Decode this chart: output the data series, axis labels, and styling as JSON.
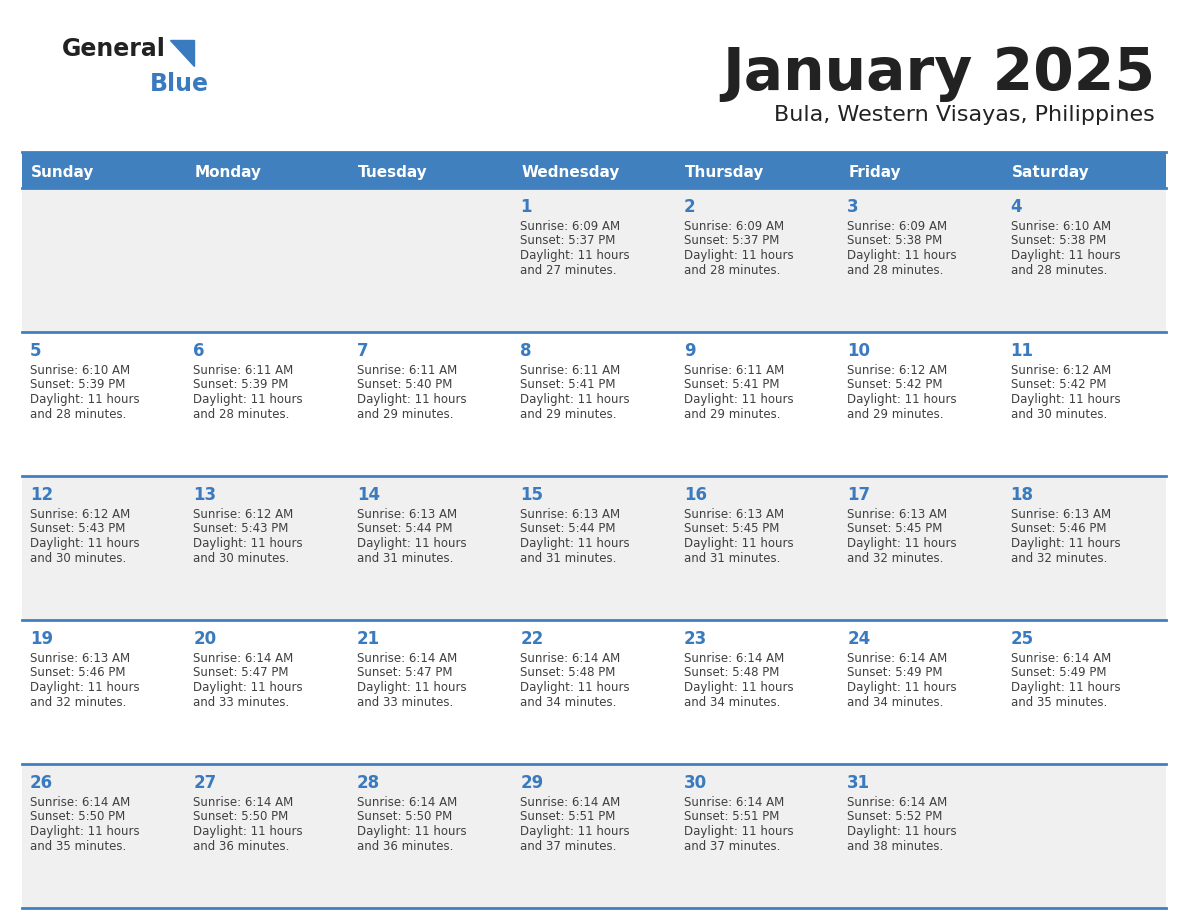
{
  "title": "January 2025",
  "subtitle": "Bula, Western Visayas, Philippines",
  "days_of_week": [
    "Sunday",
    "Monday",
    "Tuesday",
    "Wednesday",
    "Thursday",
    "Friday",
    "Saturday"
  ],
  "header_bg": "#4080bf",
  "header_text": "#ffffff",
  "row_bg_odd": "#f0f0f0",
  "row_bg_even": "#ffffff",
  "separator_color": "#4080bf",
  "day_num_color": "#3a7abf",
  "text_color": "#404040",
  "calendar_data": [
    {
      "day": 1,
      "col": 3,
      "row": 0,
      "sunrise": "6:09 AM",
      "sunset": "5:37 PM",
      "daylight": "11 hours and 27 minutes."
    },
    {
      "day": 2,
      "col": 4,
      "row": 0,
      "sunrise": "6:09 AM",
      "sunset": "5:37 PM",
      "daylight": "11 hours and 28 minutes."
    },
    {
      "day": 3,
      "col": 5,
      "row": 0,
      "sunrise": "6:09 AM",
      "sunset": "5:38 PM",
      "daylight": "11 hours and 28 minutes."
    },
    {
      "day": 4,
      "col": 6,
      "row": 0,
      "sunrise": "6:10 AM",
      "sunset": "5:38 PM",
      "daylight": "11 hours and 28 minutes."
    },
    {
      "day": 5,
      "col": 0,
      "row": 1,
      "sunrise": "6:10 AM",
      "sunset": "5:39 PM",
      "daylight": "11 hours and 28 minutes."
    },
    {
      "day": 6,
      "col": 1,
      "row": 1,
      "sunrise": "6:11 AM",
      "sunset": "5:39 PM",
      "daylight": "11 hours and 28 minutes."
    },
    {
      "day": 7,
      "col": 2,
      "row": 1,
      "sunrise": "6:11 AM",
      "sunset": "5:40 PM",
      "daylight": "11 hours and 29 minutes."
    },
    {
      "day": 8,
      "col": 3,
      "row": 1,
      "sunrise": "6:11 AM",
      "sunset": "5:41 PM",
      "daylight": "11 hours and 29 minutes."
    },
    {
      "day": 9,
      "col": 4,
      "row": 1,
      "sunrise": "6:11 AM",
      "sunset": "5:41 PM",
      "daylight": "11 hours and 29 minutes."
    },
    {
      "day": 10,
      "col": 5,
      "row": 1,
      "sunrise": "6:12 AM",
      "sunset": "5:42 PM",
      "daylight": "11 hours and 29 minutes."
    },
    {
      "day": 11,
      "col": 6,
      "row": 1,
      "sunrise": "6:12 AM",
      "sunset": "5:42 PM",
      "daylight": "11 hours and 30 minutes."
    },
    {
      "day": 12,
      "col": 0,
      "row": 2,
      "sunrise": "6:12 AM",
      "sunset": "5:43 PM",
      "daylight": "11 hours and 30 minutes."
    },
    {
      "day": 13,
      "col": 1,
      "row": 2,
      "sunrise": "6:12 AM",
      "sunset": "5:43 PM",
      "daylight": "11 hours and 30 minutes."
    },
    {
      "day": 14,
      "col": 2,
      "row": 2,
      "sunrise": "6:13 AM",
      "sunset": "5:44 PM",
      "daylight": "11 hours and 31 minutes."
    },
    {
      "day": 15,
      "col": 3,
      "row": 2,
      "sunrise": "6:13 AM",
      "sunset": "5:44 PM",
      "daylight": "11 hours and 31 minutes."
    },
    {
      "day": 16,
      "col": 4,
      "row": 2,
      "sunrise": "6:13 AM",
      "sunset": "5:45 PM",
      "daylight": "11 hours and 31 minutes."
    },
    {
      "day": 17,
      "col": 5,
      "row": 2,
      "sunrise": "6:13 AM",
      "sunset": "5:45 PM",
      "daylight": "11 hours and 32 minutes."
    },
    {
      "day": 18,
      "col": 6,
      "row": 2,
      "sunrise": "6:13 AM",
      "sunset": "5:46 PM",
      "daylight": "11 hours and 32 minutes."
    },
    {
      "day": 19,
      "col": 0,
      "row": 3,
      "sunrise": "6:13 AM",
      "sunset": "5:46 PM",
      "daylight": "11 hours and 32 minutes."
    },
    {
      "day": 20,
      "col": 1,
      "row": 3,
      "sunrise": "6:14 AM",
      "sunset": "5:47 PM",
      "daylight": "11 hours and 33 minutes."
    },
    {
      "day": 21,
      "col": 2,
      "row": 3,
      "sunrise": "6:14 AM",
      "sunset": "5:47 PM",
      "daylight": "11 hours and 33 minutes."
    },
    {
      "day": 22,
      "col": 3,
      "row": 3,
      "sunrise": "6:14 AM",
      "sunset": "5:48 PM",
      "daylight": "11 hours and 34 minutes."
    },
    {
      "day": 23,
      "col": 4,
      "row": 3,
      "sunrise": "6:14 AM",
      "sunset": "5:48 PM",
      "daylight": "11 hours and 34 minutes."
    },
    {
      "day": 24,
      "col": 5,
      "row": 3,
      "sunrise": "6:14 AM",
      "sunset": "5:49 PM",
      "daylight": "11 hours and 34 minutes."
    },
    {
      "day": 25,
      "col": 6,
      "row": 3,
      "sunrise": "6:14 AM",
      "sunset": "5:49 PM",
      "daylight": "11 hours and 35 minutes."
    },
    {
      "day": 26,
      "col": 0,
      "row": 4,
      "sunrise": "6:14 AM",
      "sunset": "5:50 PM",
      "daylight": "11 hours and 35 minutes."
    },
    {
      "day": 27,
      "col": 1,
      "row": 4,
      "sunrise": "6:14 AM",
      "sunset": "5:50 PM",
      "daylight": "11 hours and 36 minutes."
    },
    {
      "day": 28,
      "col": 2,
      "row": 4,
      "sunrise": "6:14 AM",
      "sunset": "5:50 PM",
      "daylight": "11 hours and 36 minutes."
    },
    {
      "day": 29,
      "col": 3,
      "row": 4,
      "sunrise": "6:14 AM",
      "sunset": "5:51 PM",
      "daylight": "11 hours and 37 minutes."
    },
    {
      "day": 30,
      "col": 4,
      "row": 4,
      "sunrise": "6:14 AM",
      "sunset": "5:51 PM",
      "daylight": "11 hours and 37 minutes."
    },
    {
      "day": 31,
      "col": 5,
      "row": 4,
      "sunrise": "6:14 AM",
      "sunset": "5:52 PM",
      "daylight": "11 hours and 38 minutes."
    }
  ]
}
